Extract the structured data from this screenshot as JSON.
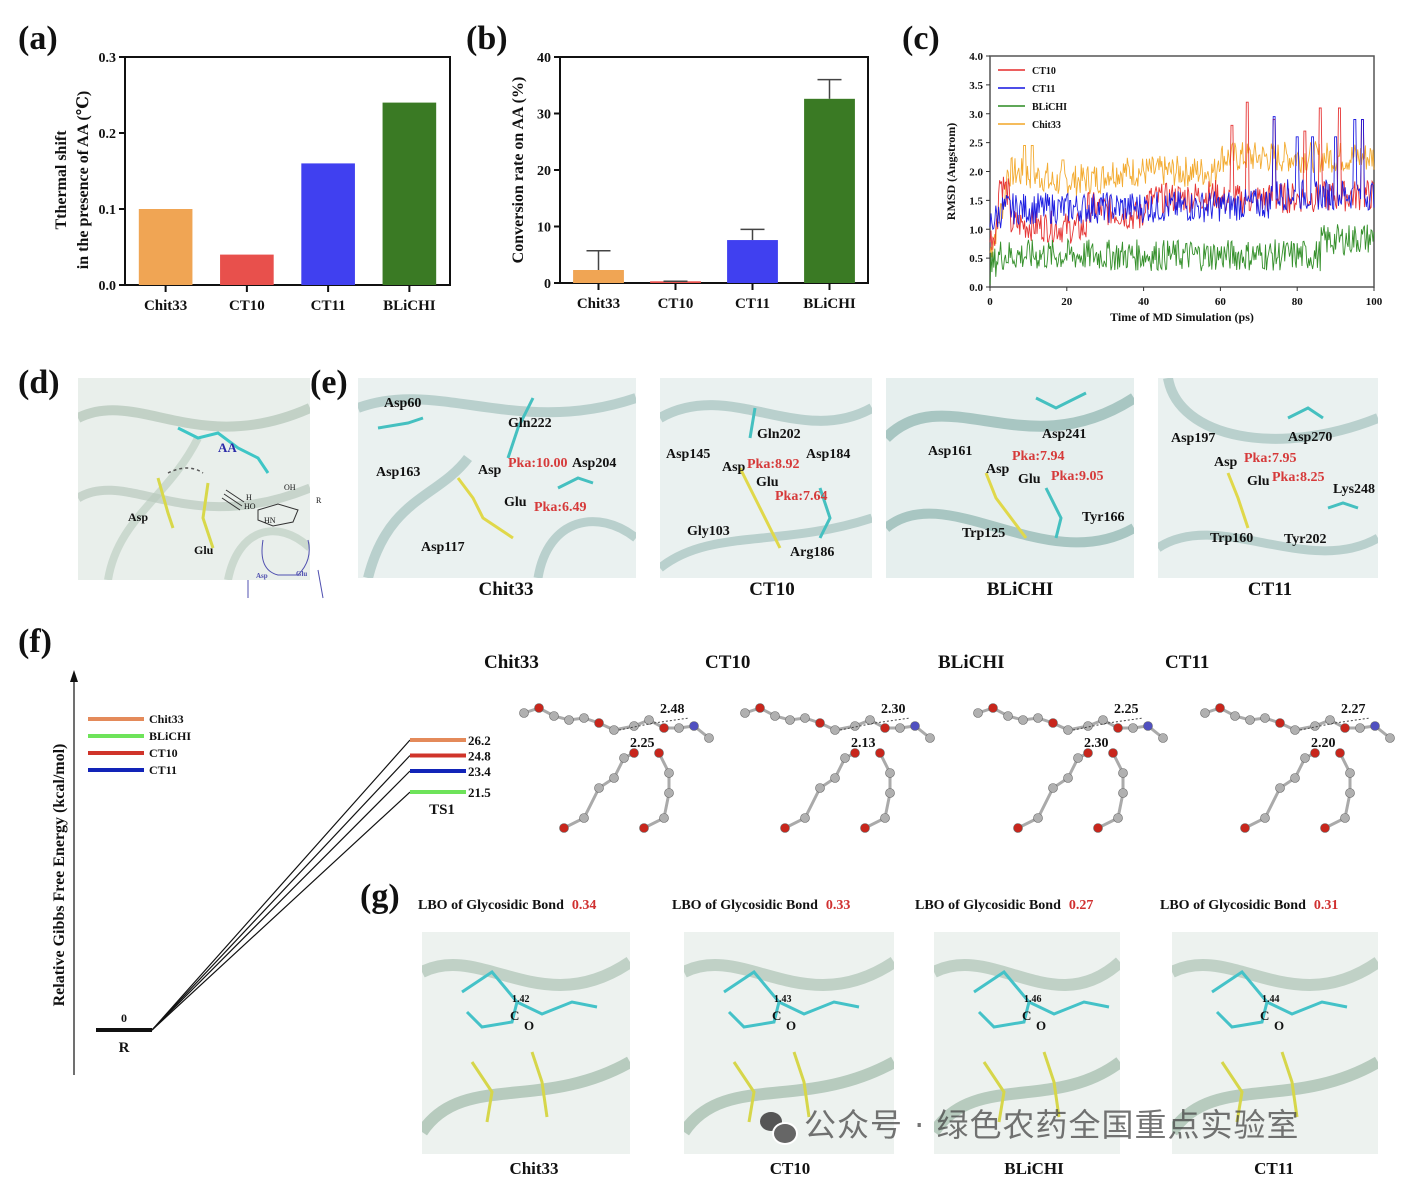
{
  "panels": {
    "a": "(a)",
    "b": "(b)",
    "c": "(c)",
    "d": "(d)",
    "e": "(e)",
    "f": "(f)",
    "g": "(g)"
  },
  "chart_data": [
    {
      "id": "a",
      "type": "bar",
      "title": "",
      "ylabel_line1": "Tthermal shift",
      "ylabel_line2": "in the presence of AA (℃)",
      "xlabel": "",
      "categories": [
        "Chit33",
        "CT10",
        "CT11",
        "BLiCHI"
      ],
      "values": [
        0.1,
        0.04,
        0.16,
        0.24
      ],
      "colors": [
        "#f0a554",
        "#e8504c",
        "#4040f0",
        "#3a7a24"
      ],
      "ylim": [
        0,
        0.3
      ],
      "yticks": [
        "0.0",
        "0.1",
        "0.2",
        "0.3"
      ],
      "grid": false
    },
    {
      "id": "b",
      "type": "bar",
      "title": "",
      "ylabel": "Conversion rate on AA (%)",
      "xlabel": "",
      "categories": [
        "Chit33",
        "CT10",
        "CT11",
        "BLiCHI"
      ],
      "values": [
        2.3,
        0.3,
        7.6,
        32.6
      ],
      "error_upper": [
        5.7,
        0.3,
        9.5,
        36.0
      ],
      "colors": [
        "#f0a554",
        "#e8504c",
        "#4040f0",
        "#3a7a24"
      ],
      "ylim": [
        0,
        40
      ],
      "yticks": [
        "0",
        "10",
        "20",
        "30",
        "40"
      ],
      "grid": false
    },
    {
      "id": "c",
      "type": "line",
      "title": "",
      "xlabel": "Time of MD Simulation (ps)",
      "ylabel": "RMSD (Angstrom)",
      "xlim": [
        0,
        100
      ],
      "ylim": [
        0,
        4.0
      ],
      "xticks": [
        "0",
        "20",
        "40",
        "60",
        "80",
        "100"
      ],
      "yticks": [
        "0.0",
        "0.5",
        "1.0",
        "1.5",
        "2.0",
        "2.5",
        "3.0",
        "3.5",
        "4.0"
      ],
      "legend_position": "top-left",
      "grid": false,
      "series": [
        {
          "name": "CT10",
          "color": "#e52a2a",
          "segments": [
            [
              0,
              0.8,
              2,
              1.1
            ],
            [
              2,
              1.9,
              5,
              1.6
            ],
            [
              5,
              1.1,
              25,
              1.0
            ],
            [
              25,
              1.4,
              40,
              1.2
            ],
            [
              40,
              1.5,
              60,
              1.6
            ],
            [
              60,
              1.5,
              100,
              1.6
            ]
          ],
          "spikes": [
            [
              63,
              2.8
            ],
            [
              67,
              3.2
            ],
            [
              74,
              2.9
            ],
            [
              82,
              2.7
            ],
            [
              86,
              3.1
            ],
            [
              91,
              3.1
            ],
            [
              97,
              2.9
            ]
          ]
        },
        {
          "name": "CT11",
          "color": "#1414e0",
          "segments": [
            [
              0,
              1.1,
              3,
              1.3
            ],
            [
              3,
              1.35,
              60,
              1.4
            ],
            [
              60,
              1.4,
              73,
              1.45
            ],
            [
              73,
              1.6,
              100,
              1.6
            ]
          ],
          "spikes": [
            [
              74,
              2.95
            ],
            [
              80,
              2.6
            ],
            [
              84,
              2.6
            ],
            [
              90,
              2.6
            ],
            [
              95,
              2.9
            ],
            [
              97,
              2.9
            ]
          ]
        },
        {
          "name": "BLiCHI",
          "color": "#2a8a20",
          "segments": [
            [
              0,
              0.3,
              3,
              0.6
            ],
            [
              3,
              0.55,
              86,
              0.55
            ],
            [
              86,
              0.8,
              100,
              0.85
            ]
          ],
          "spikes": []
        },
        {
          "name": "Chit33",
          "color": "#f2a626",
          "segments": [
            [
              0,
              0.6,
              4,
              1.6
            ],
            [
              4,
              2.0,
              15,
              1.9
            ],
            [
              15,
              1.8,
              30,
              1.9
            ],
            [
              30,
              2.0,
              59,
              2.0
            ],
            [
              59,
              2.25,
              100,
              2.25
            ]
          ],
          "spikes": [
            [
              9,
              2.45
            ],
            [
              11,
              2.45
            ],
            [
              19,
              2.2
            ]
          ]
        }
      ]
    },
    {
      "id": "f",
      "type": "line",
      "title": "",
      "ylabel": "Relative Gibbs Free Energy (kcal/mol)",
      "states": [
        "R",
        "TS1"
      ],
      "reactant_value": 0,
      "reactant_label": "0",
      "series": [
        {
          "name": "Chit33",
          "color": "#e48a5a",
          "ts_value": 26.2,
          "label": "26.2"
        },
        {
          "name": "BLiCHI",
          "color": "#6ee35a",
          "ts_value": 21.5,
          "label": "21.5"
        },
        {
          "name": "CT10",
          "color": "#d0342a",
          "ts_value": 24.8,
          "label": "24.8"
        },
        {
          "name": "CT11",
          "color": "#1224b8",
          "ts_value": 23.4,
          "label": "23.4"
        }
      ],
      "legend_position": "top-left"
    }
  ],
  "panel_d": {
    "labels": {
      "ligand": "AA",
      "asp": "Asp",
      "glu": "Glu"
    },
    "scheme": {
      "oh": "OH",
      "h": "H",
      "ho": "HO",
      "hn": "HN",
      "r": "R",
      "asp": "Asp",
      "glu": "Glu"
    }
  },
  "panel_e": [
    {
      "caption": "Chit33",
      "residues": [
        "Asp60",
        "Gln222",
        "Asp163",
        "Asp",
        "Asp204",
        "Glu",
        "Asp117"
      ],
      "pka": [
        "Pka:10.00",
        "Pka:6.49"
      ]
    },
    {
      "caption": "CT10",
      "residues": [
        "Gln202",
        "Asp145",
        "Asp",
        "Asp184",
        "Glu",
        "Gly103",
        "Arg186"
      ],
      "pka": [
        "Pka:8.92",
        "Pka:7.64"
      ]
    },
    {
      "caption": "BLiCHI",
      "residues": [
        "Asp241",
        "Asp161",
        "Asp",
        "Glu",
        "Tyr166",
        "Trp125"
      ],
      "pka": [
        "Pka:7.94",
        "Pka:9.05"
      ]
    },
    {
      "caption": "CT11",
      "residues": [
        "Asp197",
        "Asp270",
        "Asp",
        "Glu",
        "Lys248",
        "Trp160",
        "Tyr202"
      ],
      "pka": [
        "Pka:7.95",
        "Pka:8.25"
      ]
    }
  ],
  "panel_f_ts": [
    {
      "caption": "Chit33",
      "d1": "2.48",
      "d2": "2.25"
    },
    {
      "caption": "CT10",
      "d1": "2.30",
      "d2": "2.13"
    },
    {
      "caption": "BLiCHI",
      "d1": "2.25",
      "d2": "2.30"
    },
    {
      "caption": "CT11",
      "d1": "2.27",
      "d2": "2.20"
    }
  ],
  "panel_g": [
    {
      "title": "LBO of Glycosidic Bond",
      "value": "0.34",
      "bond": "1.42",
      "c": "C",
      "o": "O",
      "caption": "Chit33"
    },
    {
      "title": "LBO of Glycosidic Bond",
      "value": "0.33",
      "bond": "1.43",
      "c": "C",
      "o": "O",
      "caption": "CT10"
    },
    {
      "title": "LBO of Glycosidic Bond",
      "value": "0.27",
      "bond": "1.46",
      "c": "C",
      "o": "O",
      "caption": "BLiCHI"
    },
    {
      "title": "LBO of Glycosidic Bond",
      "value": "0.31",
      "bond": "1.44",
      "c": "C",
      "o": "O",
      "caption": "CT11"
    }
  ],
  "watermark": "公众号 · 绿色农药全国重点实验室",
  "watermark_icon": "wechat-icon"
}
